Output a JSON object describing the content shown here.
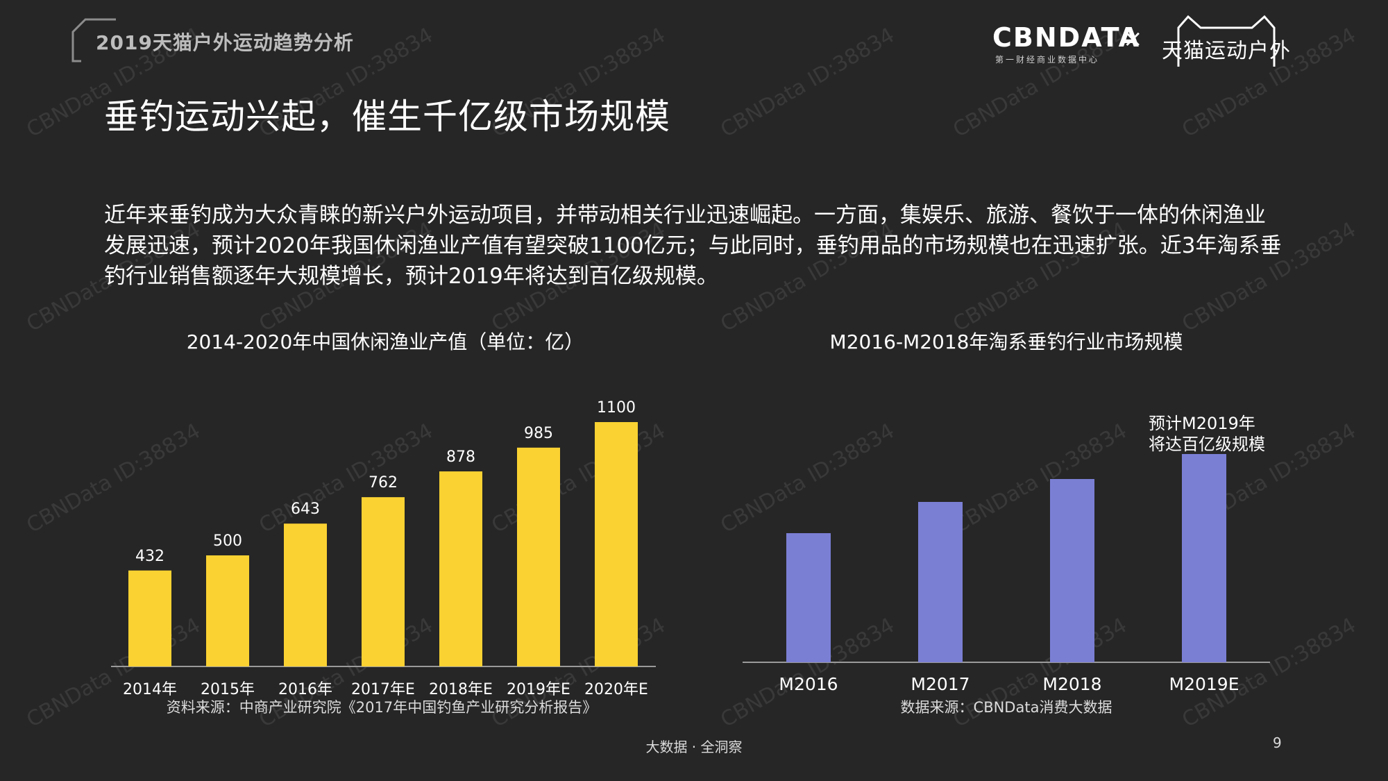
{
  "header": {
    "report_title": "2019天猫户外运动趋势分析",
    "logo_cbn": "CBNDATA",
    "logo_cbn_sub": "第一财经商业数据中心",
    "logo_cross": "×",
    "logo_tmall": "天猫运动户外"
  },
  "page": {
    "heading": "垂钓运动兴起，催生千亿级市场规模",
    "intro": "近年来垂钓成为大众青睐的新兴户外运动项目，并带动相关行业迅速崛起。一方面，集娱乐、旅游、餐饮于一体的休闲渔业发展迅速，预计2020年我国休闲渔业产值有望突破1100亿元；与此同时，垂钓用品的市场规模也在迅速扩张。近3年淘系垂钓行业销售额逐年大规模增长，预计2019年将达到百亿级规模。",
    "watermark": "CBNData ID:38834"
  },
  "colors": {
    "background": "#262626",
    "bar_yellow": "#FAD232",
    "bar_purple": "#7B7FD4"
  },
  "chart_data": [
    {
      "type": "bar",
      "title": "2014-2020年中国休闲渔业产值（单位：亿）",
      "categories": [
        "2014年",
        "2015年",
        "2016年",
        "2017年E",
        "2018年E",
        "2019年E",
        "2020年E"
      ],
      "values": [
        432,
        500,
        643,
        762,
        878,
        985,
        1100
      ],
      "data_labels": [
        "432",
        "500",
        "643",
        "762",
        "878",
        "985",
        "1100"
      ],
      "ylim": [
        0,
        1100
      ],
      "grid": false,
      "color": "#FAD232",
      "source": "资料来源：中商产业研究院《2017年中国钓鱼产业研究分析报告》"
    },
    {
      "type": "bar",
      "title": "M2016-M2018年淘系垂钓行业市场规模",
      "categories": [
        "M2016",
        "M2017",
        "M2018",
        "M2019E"
      ],
      "values": [
        0.62,
        0.77,
        0.88,
        1.0
      ],
      "value_unit": "relative (no axis or data labels shown)",
      "annotation": "预计M2019年\n将达百亿级规模",
      "grid": false,
      "color": "#7B7FD4",
      "source": "数据来源：CBNData消费大数据"
    }
  ],
  "footer": {
    "center": "大数据 · 全洞察",
    "page_number": "9"
  }
}
